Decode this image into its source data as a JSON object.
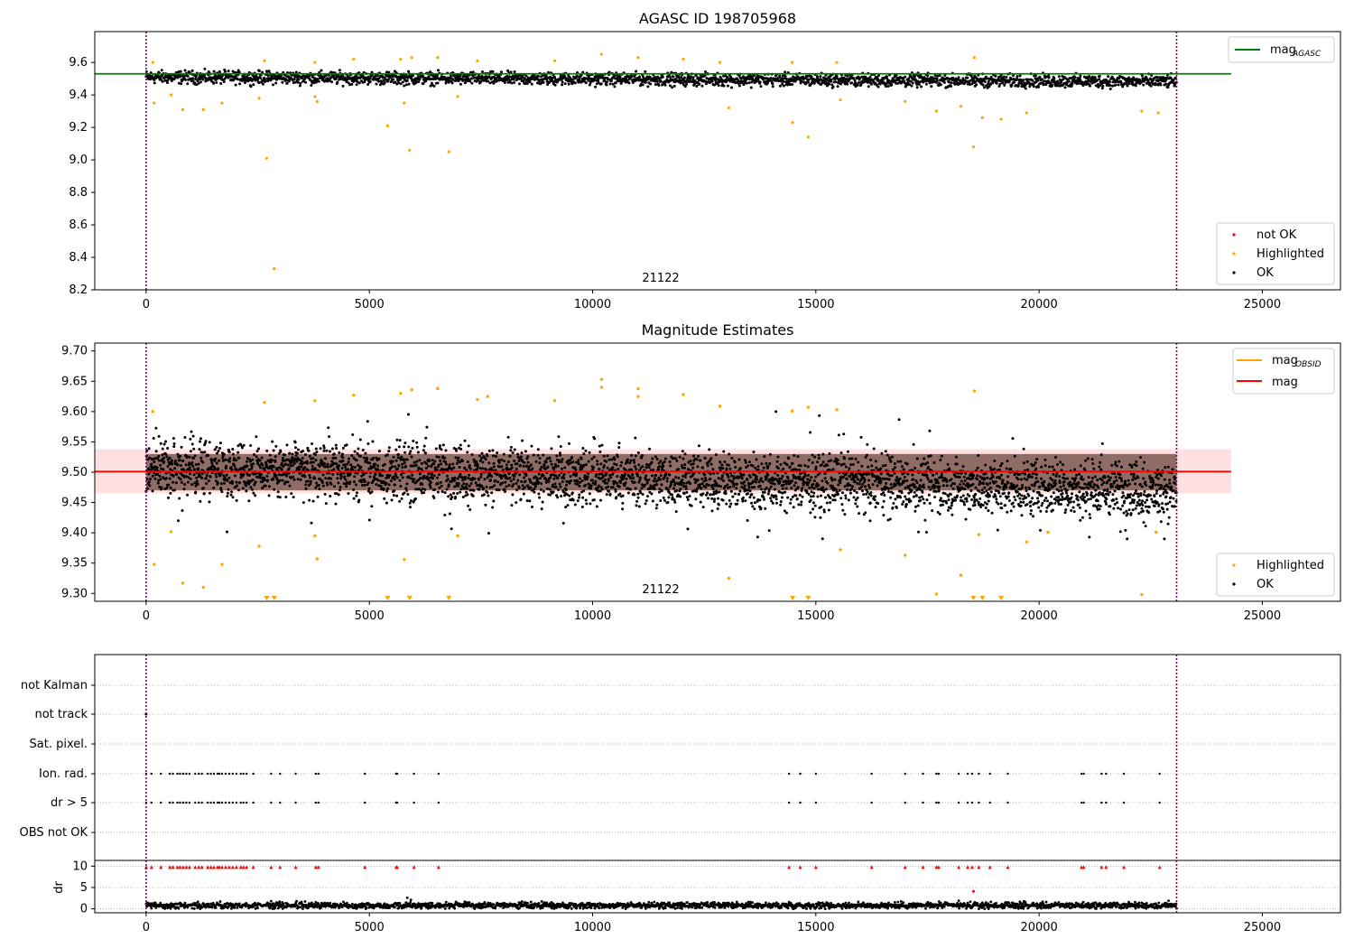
{
  "figure": {
    "title": "AGASC ID 198705968"
  },
  "chart_data": [
    {
      "type": "scatter",
      "title": "AGASC ID 198705968",
      "xlim": [
        -1150,
        26750
      ],
      "ylim": [
        8.2,
        9.79
      ],
      "xticks": [
        "0",
        "5000",
        "10000",
        "15000",
        "20000",
        "25000"
      ],
      "xtick_values": [
        0,
        5000,
        10000,
        15000,
        20000,
        25000
      ],
      "yticks": [
        "8.2",
        "8.4",
        "8.6",
        "8.8",
        "9.0",
        "9.2",
        "9.4",
        "9.6"
      ],
      "ytick_values": [
        8.2,
        8.4,
        8.6,
        8.8,
        9.0,
        9.2,
        9.4,
        9.6
      ],
      "vlines": [
        0,
        23080
      ],
      "vline_color": "#800080",
      "annotation": "21122",
      "annotation_x": 11500,
      "line": {
        "name": "mag",
        "subscript": "AGASC",
        "y": 9.53,
        "x_range": [
          -1150,
          24300
        ],
        "color": "#008000"
      },
      "band": {
        "center": 9.51,
        "half_width": 0.05,
        "trend_per_1000": -0.0012,
        "noise": 0.035
      },
      "legend_scatter": [
        {
          "label": "not OK",
          "color": "#ff0000"
        },
        {
          "label": "Highlighted",
          "color": "#ffa500"
        },
        {
          "label": "OK",
          "color": "#000000"
        }
      ],
      "highlighted_outliers": [
        {
          "x": 180,
          "y": 9.35
        },
        {
          "x": 560,
          "y": 9.4
        },
        {
          "x": 820,
          "y": 9.31
        },
        {
          "x": 1280,
          "y": 9.31
        },
        {
          "x": 1700,
          "y": 9.35
        },
        {
          "x": 2530,
          "y": 9.38
        },
        {
          "x": 2700,
          "y": 9.01
        },
        {
          "x": 2870,
          "y": 8.33
        },
        {
          "x": 3780,
          "y": 9.39
        },
        {
          "x": 3830,
          "y": 9.36
        },
        {
          "x": 5410,
          "y": 9.21
        },
        {
          "x": 5780,
          "y": 9.35
        },
        {
          "x": 5900,
          "y": 9.06
        },
        {
          "x": 6780,
          "y": 9.05
        },
        {
          "x": 6980,
          "y": 9.39
        },
        {
          "x": 13050,
          "y": 9.32
        },
        {
          "x": 14480,
          "y": 9.23
        },
        {
          "x": 14830,
          "y": 9.14
        },
        {
          "x": 15550,
          "y": 9.37
        },
        {
          "x": 17000,
          "y": 9.36
        },
        {
          "x": 17700,
          "y": 9.3
        },
        {
          "x": 18250,
          "y": 9.33
        },
        {
          "x": 18530,
          "y": 9.08
        },
        {
          "x": 18730,
          "y": 9.26
        },
        {
          "x": 19150,
          "y": 9.25
        },
        {
          "x": 19720,
          "y": 9.29
        },
        {
          "x": 22300,
          "y": 9.3
        },
        {
          "x": 22670,
          "y": 9.29
        }
      ],
      "highlighted_high": [
        {
          "x": 150,
          "y": 9.6
        },
        {
          "x": 2650,
          "y": 9.61
        },
        {
          "x": 3780,
          "y": 9.6
        },
        {
          "x": 4650,
          "y": 9.62
        },
        {
          "x": 5700,
          "y": 9.62
        },
        {
          "x": 5950,
          "y": 9.63
        },
        {
          "x": 6530,
          "y": 9.63
        },
        {
          "x": 7420,
          "y": 9.61
        },
        {
          "x": 9150,
          "y": 9.61
        },
        {
          "x": 10200,
          "y": 9.65
        },
        {
          "x": 11020,
          "y": 9.63
        },
        {
          "x": 12030,
          "y": 9.62
        },
        {
          "x": 12850,
          "y": 9.6
        },
        {
          "x": 14470,
          "y": 9.6
        },
        {
          "x": 15470,
          "y": 9.6
        },
        {
          "x": 18550,
          "y": 9.63
        }
      ]
    },
    {
      "type": "scatter",
      "title": "Magnitude Estimates",
      "xlim": [
        -1150,
        26750
      ],
      "ylim": [
        9.287,
        9.713
      ],
      "xticks": [
        "0",
        "5000",
        "10000",
        "15000",
        "20000",
        "25000"
      ],
      "xtick_values": [
        0,
        5000,
        10000,
        15000,
        20000,
        25000
      ],
      "yticks": [
        "9.30",
        "9.35",
        "9.40",
        "9.45",
        "9.50",
        "9.55",
        "9.60",
        "9.65",
        "9.70"
      ],
      "ytick_values": [
        9.3,
        9.35,
        9.4,
        9.45,
        9.5,
        9.55,
        9.6,
        9.65,
        9.7
      ],
      "vlines": [
        0,
        23080
      ],
      "vline_color": "#800080",
      "annotation": "21122",
      "annotation_x": 11500,
      "shaded_band": {
        "y0": 9.465,
        "y1": 9.538,
        "x_range": [
          -1150,
          24300
        ],
        "color": "#ff0000",
        "opacity": 0.12
      },
      "obsid_band": {
        "y0": 9.47,
        "y1": 9.53,
        "x_range": [
          0,
          23080
        ],
        "color": "#330f00"
      },
      "mag_line": {
        "y": 9.501,
        "x_range": [
          -1150,
          24300
        ],
        "color": "#ff0000"
      },
      "obsid_line_color": "#ffa500",
      "legend_lines": [
        {
          "name": "mag",
          "subscript": "OBSID",
          "color": "#ffa500"
        },
        {
          "name": "mag",
          "subscript": "",
          "color": "#ff0000"
        }
      ],
      "legend_scatter": [
        {
          "label": "Highlighted",
          "color": "#ffa500"
        },
        {
          "label": "OK",
          "color": "#000000"
        }
      ],
      "highlighted_points": [
        {
          "x": 180,
          "y": 9.348
        },
        {
          "x": 560,
          "y": 9.402
        },
        {
          "x": 820,
          "y": 9.317
        },
        {
          "x": 1280,
          "y": 9.31
        },
        {
          "x": 1700,
          "y": 9.348
        },
        {
          "x": 2530,
          "y": 9.378
        },
        {
          "x": 3780,
          "y": 9.395
        },
        {
          "x": 3830,
          "y": 9.357
        },
        {
          "x": 5780,
          "y": 9.356
        },
        {
          "x": 6980,
          "y": 9.395
        },
        {
          "x": 13050,
          "y": 9.325
        },
        {
          "x": 15550,
          "y": 9.372
        },
        {
          "x": 17000,
          "y": 9.363
        },
        {
          "x": 18250,
          "y": 9.33
        },
        {
          "x": 17700,
          "y": 9.299
        },
        {
          "x": 22300,
          "y": 9.298
        },
        {
          "x": 18650,
          "y": 9.397
        },
        {
          "x": 20200,
          "y": 9.401
        },
        {
          "x": 19720,
          "y": 9.385
        },
        {
          "x": 22620,
          "y": 9.401
        },
        {
          "x": 150,
          "y": 9.6
        },
        {
          "x": 2650,
          "y": 9.615
        },
        {
          "x": 3780,
          "y": 9.618
        },
        {
          "x": 4650,
          "y": 9.627
        },
        {
          "x": 5700,
          "y": 9.63
        },
        {
          "x": 5950,
          "y": 9.636
        },
        {
          "x": 6530,
          "y": 9.638
        },
        {
          "x": 7420,
          "y": 9.62
        },
        {
          "x": 7650,
          "y": 9.625
        },
        {
          "x": 9150,
          "y": 9.618
        },
        {
          "x": 10200,
          "y": 9.653
        },
        {
          "x": 10200,
          "y": 9.64
        },
        {
          "x": 11020,
          "y": 9.638
        },
        {
          "x": 11020,
          "y": 9.625
        },
        {
          "x": 12030,
          "y": 9.628
        },
        {
          "x": 12850,
          "y": 9.609
        },
        {
          "x": 14470,
          "y": 9.601
        },
        {
          "x": 14830,
          "y": 9.607
        },
        {
          "x": 15470,
          "y": 9.603
        },
        {
          "x": 18550,
          "y": 9.634
        }
      ],
      "offscale_markers_x": [
        2700,
        2870,
        5410,
        5900,
        6780,
        14480,
        14830,
        18530,
        18730,
        19150
      ]
    },
    {
      "type": "scatter",
      "title": "",
      "xlim": [
        -1150,
        26750
      ],
      "xticks": [
        "0",
        "5000",
        "10000",
        "15000",
        "20000",
        "25000"
      ],
      "xtick_values": [
        0,
        5000,
        10000,
        15000,
        20000,
        25000
      ],
      "vlines": [
        0,
        23080
      ],
      "vline_color": "#800080",
      "flag_rows": [
        "not Kalman",
        "not track",
        "Sat. pixel.",
        "Ion. rad.",
        "dr > 5",
        "OBS not OK"
      ],
      "not_track_x": [
        0
      ],
      "ion_rad_x": [
        0,
        120,
        330,
        530,
        600,
        700,
        760,
        830,
        900,
        970,
        1100,
        1180,
        1250,
        1380,
        1450,
        1520,
        1600,
        1640,
        1700,
        1780,
        1860,
        1940,
        2020,
        2120,
        2180,
        2250,
        2400,
        2800,
        3000,
        3350,
        3800,
        3860,
        4900,
        5600,
        5620,
        6000,
        6550,
        14400,
        14650,
        15000,
        16250,
        17000,
        17400,
        17700,
        17750,
        18200,
        18400,
        18500,
        18650,
        18900,
        19300,
        20950,
        21000,
        21400,
        21500,
        21900,
        22700
      ],
      "dr_label": "dr",
      "dr_yticks": [
        "0",
        "5",
        "10"
      ],
      "dr_ytick_values": [
        0,
        5,
        10
      ],
      "dr_ylim": [
        -0.5,
        10.5
      ],
      "dr_typical": 0.8,
      "dr_spikes": [
        {
          "x": 5850,
          "y": 2.6
        },
        {
          "x": 5930,
          "y": 2.1
        },
        {
          "x": 18530,
          "y": 4.1
        },
        {
          "x": 18200,
          "y": 1.9
        },
        {
          "x": 2800,
          "y": 1.8
        },
        {
          "x": 14400,
          "y": 1.6
        },
        {
          "x": 22900,
          "y": 1.9
        },
        {
          "x": 8400,
          "y": 1.4
        }
      ],
      "dr_marker_color": "#ff0000"
    }
  ]
}
